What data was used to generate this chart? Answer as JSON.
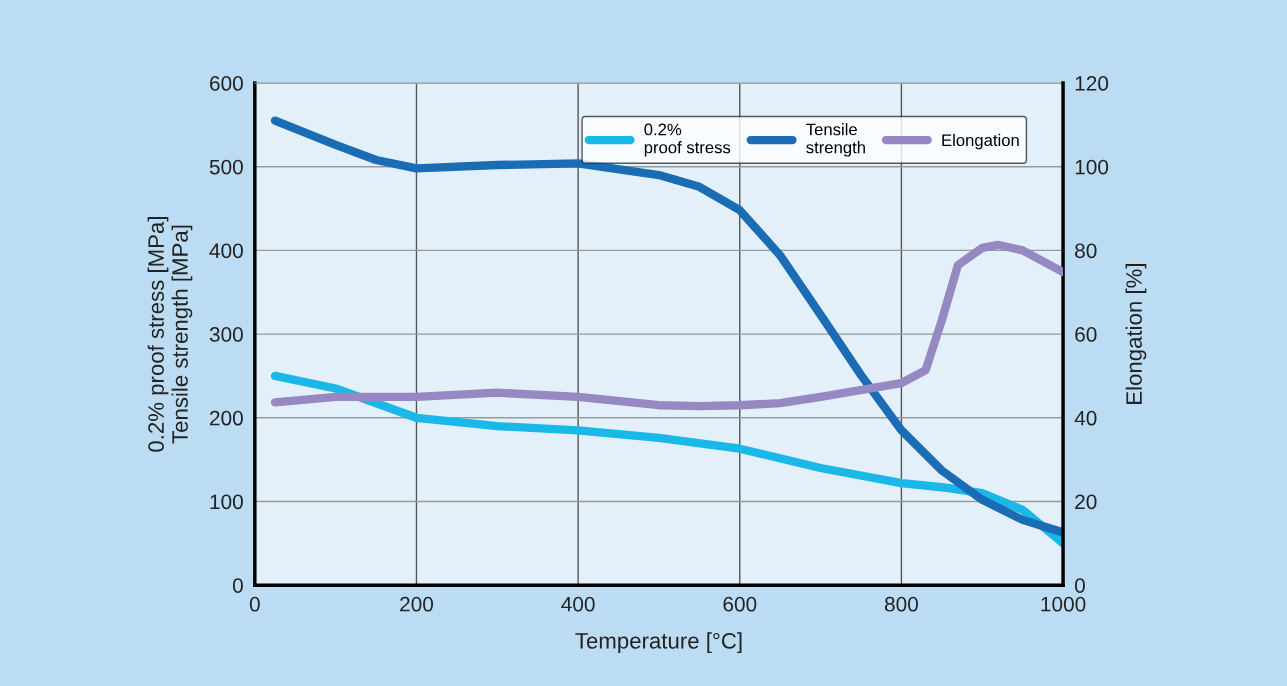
{
  "chart_data": {
    "type": "line",
    "xlabel": "Temperature [°C]",
    "ylabel": "0.2% proof stress [MPa]\nTensile strength [MPa]",
    "y2label": "Elongation [%]",
    "xlim": [
      0,
      1000
    ],
    "xticks": [
      0,
      200,
      400,
      600,
      800,
      1000
    ],
    "ylim": [
      0,
      600
    ],
    "yticks": [
      0,
      100,
      200,
      300,
      400,
      500,
      600
    ],
    "y2lim": [
      0,
      120
    ],
    "y2ticks": [
      0,
      20,
      40,
      60,
      80,
      100,
      120
    ],
    "grid": true,
    "legend": "top right",
    "line_style": "solid",
    "marker": "none",
    "series": [
      {
        "name": "0.2%\nproof stress",
        "color": "#1ab8e8",
        "x": [
          25,
          100,
          200,
          300,
          400,
          500,
          600,
          700,
          800,
          850,
          900,
          950,
          1000
        ],
        "values": [
          250,
          235,
          200,
          190,
          185,
          176,
          163,
          140,
          122,
          117,
          110,
          90,
          50
        ]
      },
      {
        "name": "Tensile\nstrength",
        "color": "#1a6db5",
        "x": [
          25,
          100,
          150,
          200,
          300,
          400,
          500,
          550,
          600,
          650,
          700,
          750,
          800,
          850,
          900,
          950,
          1000
        ],
        "values": [
          555,
          526,
          508,
          498,
          502,
          504,
          490,
          476,
          448,
          394,
          323,
          251,
          185,
          137,
          102,
          78,
          63
        ]
      },
      {
        "name": "Elongation",
        "color": "#9688c2",
        "axis": "y2",
        "x": [
          25,
          100,
          200,
          300,
          400,
          500,
          550,
          600,
          650,
          700,
          800,
          830,
          850,
          870,
          900,
          920,
          950,
          1000
        ],
        "values": [
          43.7,
          45,
          45,
          46,
          45,
          43,
          42.8,
          43,
          43.5,
          45,
          48.3,
          51.4,
          63.3,
          76.5,
          80.6,
          81.3,
          80,
          74.8
        ]
      }
    ]
  }
}
